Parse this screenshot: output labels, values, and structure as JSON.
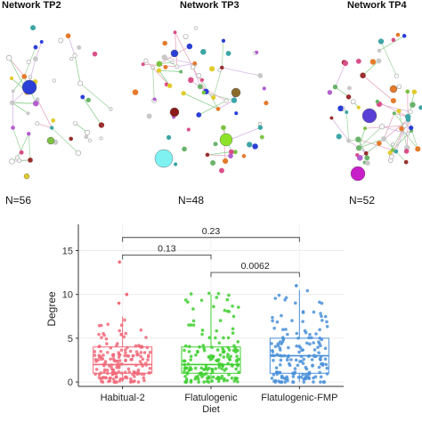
{
  "networks": [
    {
      "title": "Network TP2",
      "n_label": "N=56"
    },
    {
      "title": "Network TP3",
      "n_label": "N=48"
    },
    {
      "title": "Network TP4",
      "n_label": "N=52"
    }
  ],
  "chart_data": {
    "type": "box",
    "ylabel": "Degree",
    "xlabel": "",
    "categories": [
      "Habitual-2",
      "Flatulogenic\nDiet",
      "Flatulogenic-FMP"
    ],
    "ylim": [
      -0.5,
      18
    ],
    "yticks": [
      0,
      5,
      10,
      15
    ],
    "grid": true,
    "colors": [
      "#f06a7a",
      "#3ecf2f",
      "#4a90d9"
    ],
    "boxes": [
      {
        "min": 0,
        "q1": 1,
        "median": 2,
        "q3": 4,
        "max": 7.5,
        "outliers": [
          9,
          10,
          13.7
        ]
      },
      {
        "min": 0,
        "q1": 1,
        "median": 2,
        "q3": 4,
        "max": 10,
        "outliers": []
      },
      {
        "min": 0,
        "q1": 1,
        "median": 3,
        "q3": 5,
        "max": 10.5,
        "outliers": [
          11
        ]
      }
    ],
    "comparisons": [
      {
        "from": 0,
        "to": 2,
        "label": "0.23",
        "y": 16.5
      },
      {
        "from": 0,
        "to": 1,
        "label": "0.13",
        "y": 14.5
      },
      {
        "from": 1,
        "to": 2,
        "label": "0.0062",
        "y": 12.5
      }
    ]
  }
}
